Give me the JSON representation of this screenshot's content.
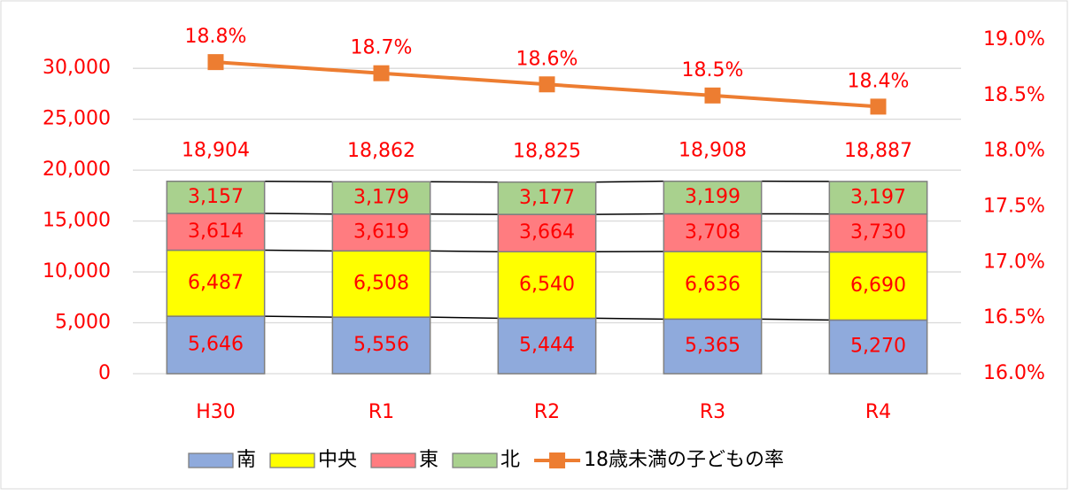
{
  "chart_data": {
    "type": "bar",
    "stacked": true,
    "categories": [
      "H30",
      "R1",
      "R2",
      "R3",
      "R4"
    ],
    "series": [
      {
        "name": "南",
        "color": "#8faadc",
        "values": [
          5646,
          5556,
          5444,
          5365,
          5270
        ],
        "value_labels": [
          "5,646",
          "5,556",
          "5,444",
          "5,365",
          "5,270"
        ]
      },
      {
        "name": "中央",
        "color": "#ffff00",
        "values": [
          6487,
          6508,
          6540,
          6636,
          6690
        ],
        "value_labels": [
          "6,487",
          "6,508",
          "6,540",
          "6,636",
          "6,690"
        ]
      },
      {
        "name": "東",
        "color": "#ff7c80",
        "values": [
          3614,
          3619,
          3664,
          3708,
          3730
        ],
        "value_labels": [
          "3,614",
          "3,619",
          "3,664",
          "3,708",
          "3,730"
        ]
      },
      {
        "name": "北",
        "color": "#a9d18e",
        "values": [
          3157,
          3179,
          3177,
          3199,
          3197
        ],
        "value_labels": [
          "3,157",
          "3,179",
          "3,177",
          "3,199",
          "3,197"
        ]
      },
      {
        "name": "18歳未満の子どもの率",
        "type": "line",
        "axis": "y2",
        "color": "#ed7d31",
        "values": [
          18.8,
          18.7,
          18.6,
          18.5,
          18.4
        ],
        "value_labels": [
          "18.8%",
          "18.7%",
          "18.6%",
          "18.5%",
          "18.4%"
        ]
      }
    ],
    "totals": [
      18904,
      18862,
      18825,
      18908,
      18887
    ],
    "total_labels": [
      "18,904",
      "18,862",
      "18,825",
      "18,908",
      "18,887"
    ],
    "ylim": [
      0,
      32800
    ],
    "yticks": [
      0,
      {
        "value": 5000,
        "label": "5,000"
      },
      {
        "value": 10000,
        "label": "10,000"
      },
      {
        "value": 15000,
        "label": "15,000"
      },
      {
        "value": 20000,
        "label": "20,000"
      },
      {
        "value": 25000,
        "label": "25,000"
      },
      {
        "value": 30000,
        "label": "30,000"
      }
    ],
    "y2lim": [
      16,
      19
    ],
    "y2ticks": [
      {
        "value": 16,
        "label": "16.0%"
      },
      {
        "value": 16.5,
        "label": "16.5%"
      },
      {
        "value": 17,
        "label": "17.0%"
      },
      {
        "value": 17.5,
        "label": "17.5%"
      },
      {
        "value": 18,
        "label": "18.0%"
      },
      {
        "value": 18.5,
        "label": "18.5%"
      },
      {
        "value": 19,
        "label": "19.0%"
      }
    ],
    "grid": true,
    "legend": "bottom"
  }
}
